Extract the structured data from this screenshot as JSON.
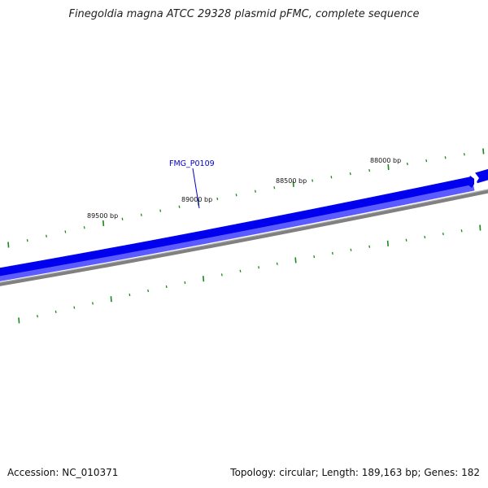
{
  "title": "Finegoldia magna ATCC 29328 plasmid pFMC, complete sequence",
  "footer": {
    "accession": "Accession: NC_010371",
    "summary": "Topology: circular; Length: 189,163 bp; Genes: 182"
  },
  "ruler_labels": [
    "88000 bp",
    "88500 bp",
    "89000 bp",
    "89500 bp"
  ],
  "genes": [
    {
      "name": "FMG_P0109"
    }
  ],
  "colors": {
    "gene": "#0000ee",
    "gene_light": "#5b5bff",
    "backbone": "#808080",
    "tick": "#1a8a1a",
    "gene_label": "#0000cc"
  }
}
